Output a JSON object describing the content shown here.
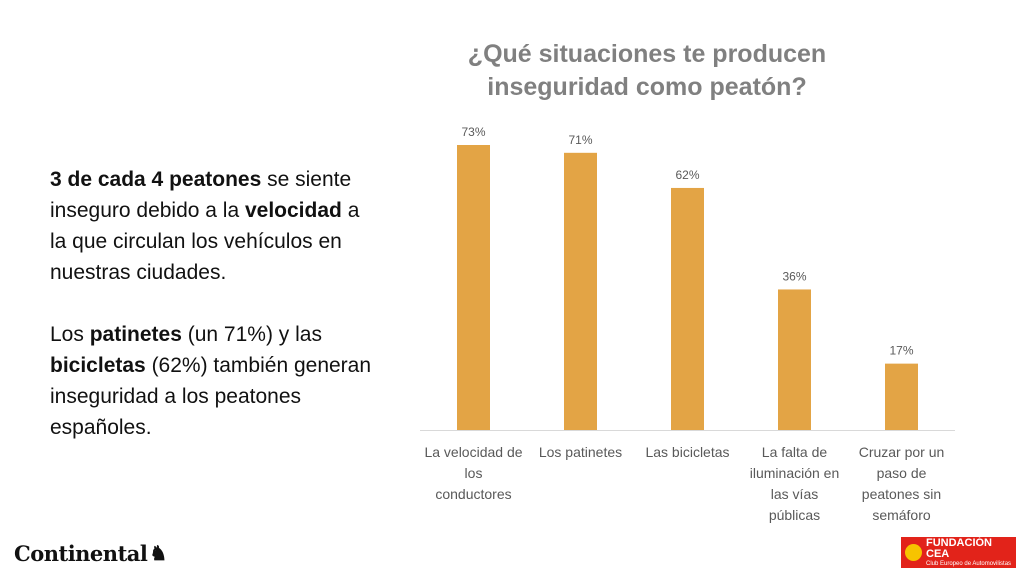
{
  "text": {
    "p1_b1": "3 de cada 4 peatones",
    "p1_t1": " se siente inseguro debido a la ",
    "p1_b2": "velocidad",
    "p1_t2": " a la que circulan los vehículos en nuestras ciudades.",
    "p2_t1": "Los ",
    "p2_b1": "patinetes",
    "p2_t2": " (un 71%) y las ",
    "p2_b2": "bicicletas",
    "p2_t3": " (62%) también generan inseguridad a los peatones españoles."
  },
  "colors": {
    "bar": "#e3a445",
    "text": "#111111",
    "title": "#808080",
    "axis": "#d9d9d9",
    "labels": "#595959"
  },
  "logos": {
    "continental": "Continental",
    "cea_line1": "FUNDACIÓN CEA",
    "cea_line2": "Club Europeo de Automovilistas"
  },
  "chart_data": {
    "type": "bar",
    "title": "¿Qué situaciones te producen inseguridad como peatón?",
    "categories": [
      [
        "La velocidad de",
        "los",
        "conductores"
      ],
      [
        "Los patinetes"
      ],
      [
        "Las bicicletas"
      ],
      [
        "La falta de",
        "iluminación en",
        "las vías",
        "públicas"
      ],
      [
        "Cruzar por un",
        "paso de",
        "peatones sin",
        "semáforo"
      ]
    ],
    "values": [
      73,
      71,
      62,
      36,
      17
    ],
    "value_labels": [
      "73%",
      "71%",
      "62%",
      "36%",
      "17%"
    ],
    "ylim": [
      0,
      80
    ],
    "grid": false,
    "legend": "none"
  }
}
